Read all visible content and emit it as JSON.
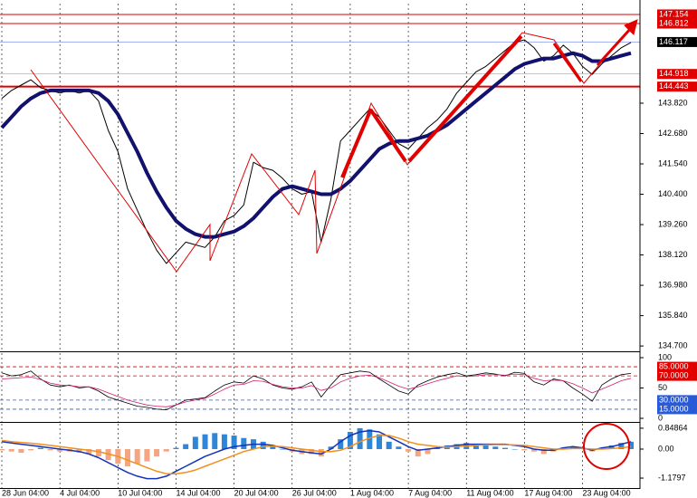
{
  "chart_data": [
    {
      "type": "line",
      "grid": "vertical",
      "ylim": [
        134.5,
        147.56
      ],
      "yticks": [
        {
          "value": 143.82,
          "label": "143.820"
        },
        {
          "value": 142.68,
          "label": "142.680"
        },
        {
          "value": 141.54,
          "label": "141.540"
        },
        {
          "value": 140.4,
          "label": "140.400"
        },
        {
          "value": 139.26,
          "label": "139.260"
        },
        {
          "value": 138.12,
          "label": "138.120"
        },
        {
          "value": 136.98,
          "label": "136.980"
        },
        {
          "value": 135.84,
          "label": "135.840"
        },
        {
          "value": 134.7,
          "label": "134.700"
        }
      ],
      "levels": [
        {
          "value": 147.154,
          "color": "#e00000",
          "width": 1
        },
        {
          "value": 146.812,
          "color": "#e00000",
          "width": 1
        },
        {
          "value": 146.117,
          "color": "#000000",
          "line_color": "#6f86e6",
          "width": 0.6
        },
        {
          "value": 144.918,
          "color": "#e00000",
          "line_color": "#f08080",
          "width": 0.6
        },
        {
          "value": 144.443,
          "color": "#e00000",
          "width": 2
        }
      ],
      "series": [
        {
          "type": "line",
          "color": "#000000",
          "width": 1,
          "values": [
            144.0,
            144.3,
            144.5,
            144.7,
            144.4,
            144.3,
            144.2,
            144.3,
            144.2,
            144.3,
            143.9,
            142.8,
            142.0,
            140.6,
            139.8,
            139.0,
            138.3,
            137.8,
            138.2,
            138.6,
            138.5,
            138.4,
            138.8,
            139.4,
            139.6,
            140.0,
            141.6,
            141.4,
            141.3,
            141.0,
            140.6,
            140.4,
            140.5,
            138.6,
            140.2,
            142.4,
            142.8,
            143.2,
            143.6,
            143.3,
            142.8,
            142.3,
            142.1,
            142.5,
            142.9,
            143.2,
            143.6,
            144.2,
            144.6,
            145.0,
            145.2,
            145.5,
            145.8,
            146.1,
            146.2,
            145.9,
            145.4,
            145.6,
            146.0,
            145.7,
            145.2,
            144.9,
            145.3,
            145.6,
            145.9,
            146.1
          ]
        },
        {
          "type": "line",
          "color": "#12126e",
          "width": 4,
          "values": [
            142.9,
            143.3,
            143.7,
            144.0,
            144.2,
            144.3,
            144.3,
            144.3,
            144.3,
            144.3,
            144.2,
            143.9,
            143.4,
            142.7,
            142.0,
            141.2,
            140.5,
            139.9,
            139.4,
            139.1,
            138.9,
            138.8,
            138.8,
            138.9,
            139.0,
            139.2,
            139.5,
            139.9,
            140.3,
            140.6,
            140.7,
            140.6,
            140.5,
            140.4,
            140.4,
            140.6,
            140.9,
            141.3,
            141.7,
            142.1,
            142.3,
            142.4,
            142.4,
            142.5,
            142.6,
            142.8,
            143.0,
            143.3,
            143.6,
            143.9,
            144.2,
            144.5,
            144.8,
            145.1,
            145.3,
            145.4,
            145.5,
            145.5,
            145.6,
            145.7,
            145.6,
            145.4,
            145.4,
            145.5,
            145.6,
            145.7
          ]
        }
      ]
    },
    {
      "type": "line",
      "grid": "vertical",
      "ylim": [
        -6,
        107.5
      ],
      "yticks": [
        100,
        50,
        0
      ],
      "levels": [
        {
          "value": 85,
          "label": "85.0000",
          "color": "#e00000",
          "width": 0.8
        },
        {
          "value": 70,
          "label": "70.0000",
          "color": "#e00000",
          "width": 0.8
        },
        {
          "value": 30,
          "label": "30.0000",
          "color": "#2a5bd7",
          "width": 0.8
        },
        {
          "value": 15,
          "label": "15.0000",
          "color": "#2a5bd7",
          "width": 0.8
        }
      ],
      "series": [
        {
          "type": "line",
          "color": "#000000",
          "width": 0.8,
          "values": [
            75,
            70,
            72,
            78,
            65,
            55,
            52,
            55,
            50,
            52,
            45,
            35,
            30,
            25,
            20,
            18,
            15,
            14,
            22,
            30,
            32,
            34,
            45,
            55,
            60,
            58,
            70,
            65,
            55,
            50,
            48,
            52,
            60,
            35,
            55,
            72,
            75,
            78,
            76,
            65,
            55,
            45,
            40,
            55,
            62,
            68,
            72,
            75,
            70,
            72,
            75,
            73,
            70,
            76,
            74,
            60,
            55,
            65,
            62,
            50,
            40,
            28,
            55,
            65,
            72,
            74
          ]
        },
        {
          "type": "line",
          "color": "#d0206e",
          "width": 0.8,
          "values": [
            65,
            66,
            67,
            68,
            64,
            58,
            55,
            54,
            52,
            52,
            48,
            42,
            36,
            30,
            26,
            22,
            20,
            19,
            22,
            27,
            30,
            33,
            40,
            48,
            55,
            56,
            62,
            61,
            56,
            52,
            50,
            50,
            54,
            46,
            50,
            60,
            66,
            70,
            71,
            67,
            60,
            53,
            48,
            52,
            57,
            62,
            66,
            70,
            69,
            70,
            72,
            72,
            71,
            73,
            72,
            66,
            62,
            63,
            62,
            57,
            50,
            42,
            48,
            55,
            62,
            66
          ]
        }
      ]
    },
    {
      "type": "bar",
      "grid": "vertical",
      "ylim": [
        -1.62,
        1.03
      ],
      "yticks": [
        0.84864,
        {
          "value": 0,
          "label": "0.00"
        },
        -1.1797
      ],
      "categories": [
        "28 Jun 04:00",
        null,
        null,
        null,
        null,
        null,
        "4 Jul 04:00",
        null,
        null,
        null,
        null,
        null,
        "10 Jul 04:00",
        null,
        null,
        null,
        null,
        null,
        "14 Jul 04:00",
        null,
        null,
        null,
        null,
        null,
        "20 Jul 04:00",
        null,
        null,
        null,
        null,
        null,
        "26 Jul 04:00",
        null,
        null,
        null,
        null,
        null,
        "1 Aug 04:00",
        null,
        null,
        null,
        null,
        null,
        "7 Aug 04:00",
        null,
        null,
        null,
        null,
        null,
        "11 Aug 04:00",
        null,
        null,
        null,
        null,
        null,
        "17 Aug 04:00",
        null,
        null,
        null,
        null,
        null,
        "23 Aug 04:00",
        null,
        null,
        null,
        null,
        null
      ],
      "series": [
        {
          "type": "bar",
          "color": "#2f86d6",
          "negative_color": "#f4a582",
          "values": [
            -0.05,
            -0.1,
            -0.15,
            -0.05,
            0.05,
            -0.05,
            -0.1,
            -0.1,
            -0.15,
            -0.2,
            -0.3,
            -0.45,
            -0.6,
            -0.7,
            -0.6,
            -0.5,
            -0.3,
            -0.1,
            0.05,
            0.2,
            0.5,
            0.6,
            0.65,
            0.6,
            0.55,
            0.45,
            0.4,
            0.3,
            0.15,
            0,
            -0.1,
            -0.2,
            -0.2,
            -0.3,
            0.1,
            0.4,
            0.7,
            0.85,
            0.8,
            0.6,
            0.3,
            0.1,
            -0.1,
            -0.3,
            -0.2,
            0.05,
            0.15,
            0.2,
            0.25,
            0.2,
            0.15,
            0.1,
            0.05,
            0,
            -0.05,
            -0.1,
            -0.2,
            -0.1,
            0.05,
            0.1,
            0.05,
            -0.1,
            0.05,
            0.15,
            0.25,
            0.3
          ]
        },
        {
          "type": "line",
          "color": "#1533b8",
          "width": 1.5,
          "values": [
            0.3,
            0.25,
            0.2,
            0.15,
            0.1,
            0.05,
            0,
            -0.05,
            -0.1,
            -0.2,
            -0.35,
            -0.55,
            -0.75,
            -0.95,
            -1.1,
            -1.2,
            -1.2,
            -1.1,
            -0.9,
            -0.7,
            -0.5,
            -0.3,
            -0.15,
            0,
            0.1,
            0.15,
            0.2,
            0.2,
            0.15,
            0.05,
            -0.05,
            -0.1,
            -0.15,
            -0.2,
            0,
            0.3,
            0.55,
            0.7,
            0.75,
            0.7,
            0.5,
            0.3,
            0.1,
            -0.05,
            0,
            0.05,
            0.1,
            0.15,
            0.2,
            0.2,
            0.2,
            0.2,
            0.2,
            0.15,
            0.1,
            0,
            -0.05,
            -0.05,
            0.05,
            0.1,
            0.05,
            -0.05,
            0.05,
            0.1,
            0.2,
            0.3
          ]
        },
        {
          "type": "line",
          "color": "#f0901e",
          "width": 1.5,
          "values": [
            0.35,
            0.3,
            0.27,
            0.24,
            0.2,
            0.15,
            0.1,
            0.05,
            0,
            -0.05,
            -0.1,
            -0.2,
            -0.3,
            -0.45,
            -0.6,
            -0.75,
            -0.9,
            -1.0,
            -1.0,
            -0.95,
            -0.85,
            -0.7,
            -0.55,
            -0.4,
            -0.25,
            -0.1,
            0,
            0.1,
            0.12,
            0.1,
            0.05,
            0,
            -0.05,
            -0.1,
            -0.1,
            -0.05,
            0.1,
            0.3,
            0.45,
            0.55,
            0.55,
            0.45,
            0.3,
            0.2,
            0.15,
            0.1,
            0.08,
            0.1,
            0.12,
            0.15,
            0.17,
            0.18,
            0.18,
            0.17,
            0.15,
            0.1,
            0.05,
            0,
            0,
            0.02,
            0.03,
            0,
            0,
            0.02,
            0.05,
            0.1
          ]
        }
      ]
    }
  ]
}
